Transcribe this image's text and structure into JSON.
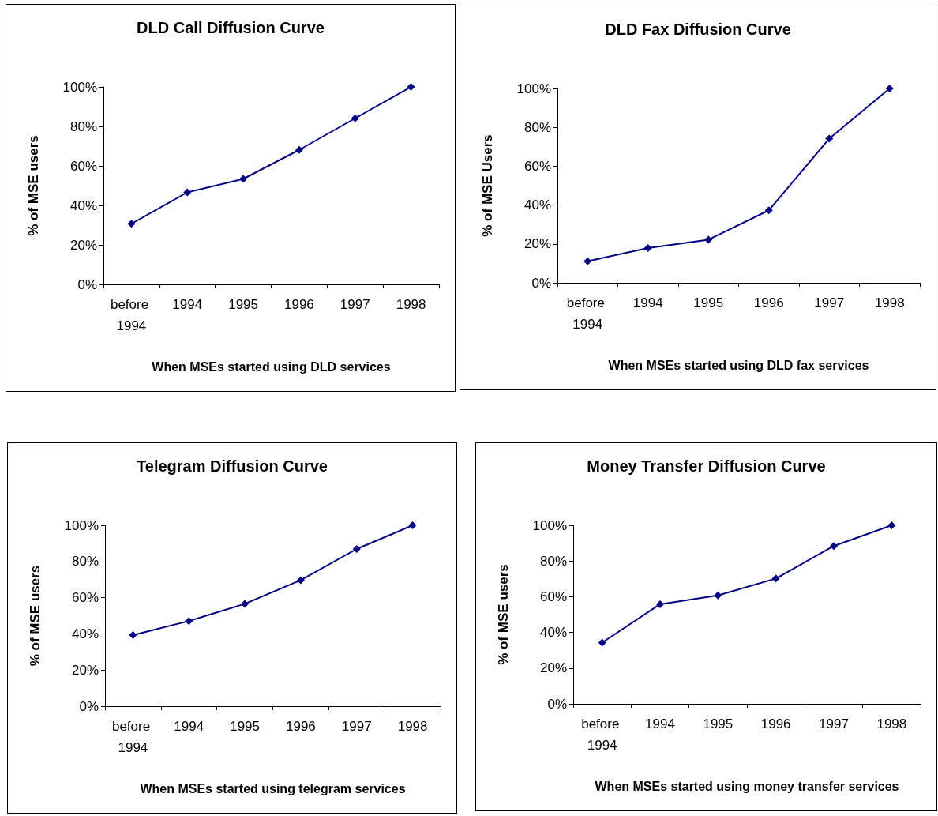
{
  "chart_data": [
    {
      "type": "line",
      "title": "DLD Call Diffusion Curve",
      "xlabel": "When MSEs started using DLD services",
      "ylabel": "% of MSE users",
      "categories": [
        "before 1994",
        "1994",
        "1995",
        "1996",
        "1997",
        "1998"
      ],
      "series": [
        {
          "color": "#000080",
          "values": [
            30.7,
            46.6,
            53.4,
            68.1,
            84.1,
            100
          ]
        }
      ],
      "ylim": [
        0,
        100
      ],
      "yticks": [
        {
          "value": 0,
          "label": "0%"
        },
        {
          "value": 20,
          "label": "20%"
        },
        {
          "value": 40,
          "label": "40%"
        },
        {
          "value": 60,
          "label": "60%"
        },
        {
          "value": 80,
          "label": "80%"
        },
        {
          "value": 100,
          "label": "100%"
        }
      ],
      "grid": false,
      "marker": "diamond",
      "line_style": "solid"
    },
    {
      "type": "line",
      "title": "DLD Fax Diffusion Curve",
      "xlabel": "When MSEs started using DLD fax services",
      "ylabel": "% of MSE Users",
      "categories": [
        "before 1994",
        "1994",
        "1995",
        "1996",
        "1997",
        "1998"
      ],
      "series": [
        {
          "color": "#000080",
          "values": [
            11.1,
            17.9,
            22.2,
            37.3,
            74.2,
            100
          ]
        }
      ],
      "ylim": [
        0,
        100
      ],
      "yticks": [
        {
          "value": 0,
          "label": "0%"
        },
        {
          "value": 20,
          "label": "20%"
        },
        {
          "value": 40,
          "label": "40%"
        },
        {
          "value": 60,
          "label": "60%"
        },
        {
          "value": 80,
          "label": "80%"
        },
        {
          "value": 100,
          "label": "100%"
        }
      ],
      "grid": false,
      "marker": "diamond",
      "line_style": "solid"
    },
    {
      "type": "line",
      "title": "Telegram Diffusion Curve",
      "xlabel": "When MSEs started using telegram services",
      "ylabel": "% of MSE users",
      "categories": [
        "before 1994",
        "1994",
        "1995",
        "1996",
        "1997",
        "1998"
      ],
      "series": [
        {
          "color": "#000080",
          "values": [
            39.3,
            47.1,
            56.6,
            69.7,
            86.9,
            100
          ]
        }
      ],
      "ylim": [
        0,
        100
      ],
      "yticks": [
        {
          "value": 0,
          "label": "0%"
        },
        {
          "value": 20,
          "label": "20%"
        },
        {
          "value": 40,
          "label": "40%"
        },
        {
          "value": 60,
          "label": "60%"
        },
        {
          "value": 80,
          "label": "80%"
        },
        {
          "value": 100,
          "label": "100%"
        }
      ],
      "grid": false,
      "marker": "diamond",
      "line_style": "solid"
    },
    {
      "type": "line",
      "title": "Money Transfer Diffusion Curve",
      "xlabel": "When MSEs started using money transfer services",
      "ylabel": "% of MSE users",
      "categories": [
        "before 1994",
        "1994",
        "1995",
        "1996",
        "1997",
        "1998"
      ],
      "series": [
        {
          "color": "#000080",
          "values": [
            34.3,
            55.8,
            60.7,
            70.2,
            88.4,
            100
          ]
        }
      ],
      "ylim": [
        0,
        100
      ],
      "yticks": [
        {
          "value": 0,
          "label": "0%"
        },
        {
          "value": 20,
          "label": "20%"
        },
        {
          "value": 40,
          "label": "40%"
        },
        {
          "value": 60,
          "label": "60%"
        },
        {
          "value": 80,
          "label": "80%"
        },
        {
          "value": 100,
          "label": "100%"
        }
      ],
      "grid": false,
      "marker": "diamond",
      "line_style": "solid"
    }
  ]
}
